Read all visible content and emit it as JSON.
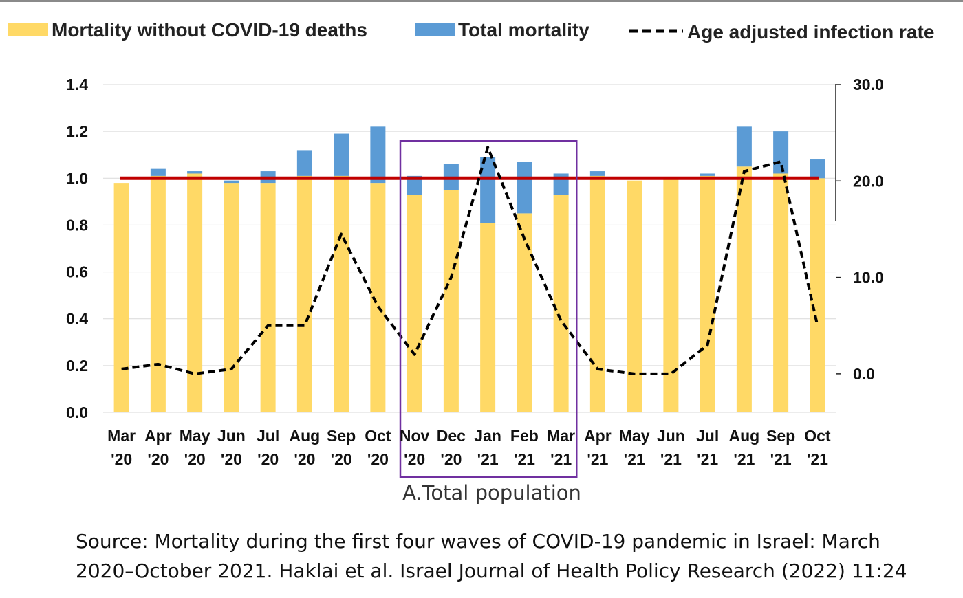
{
  "chart_data": {
    "type": "bar",
    "legend": [
      {
        "label": "Mortality without COVID-19 deaths",
        "color": "#FFD966",
        "style": "box"
      },
      {
        "label": "Total mortality",
        "color": "#5B9BD5",
        "style": "box"
      },
      {
        "label": "Age adjusted infection rate",
        "color": "#000000",
        "style": "dashed-line"
      }
    ],
    "categories": [
      [
        "Mar",
        "'20"
      ],
      [
        "Apr",
        "'20"
      ],
      [
        "May",
        "'20"
      ],
      [
        "Jun",
        "'20"
      ],
      [
        "Jul",
        "'20"
      ],
      [
        "Aug",
        "'20"
      ],
      [
        "Sep",
        "'20"
      ],
      [
        "Oct",
        "'20"
      ],
      [
        "Nov",
        "'20"
      ],
      [
        "Dec",
        "'20"
      ],
      [
        "Jan",
        "'21"
      ],
      [
        "Feb",
        "'21"
      ],
      [
        "Mar",
        "'21"
      ],
      [
        "Apr",
        "'21"
      ],
      [
        "May",
        "'21"
      ],
      [
        "Jun",
        "'21"
      ],
      [
        "Jul",
        "'21"
      ],
      [
        "Aug",
        "'21"
      ],
      [
        "Sep",
        "'21"
      ],
      [
        "Oct",
        "'21"
      ]
    ],
    "series": [
      {
        "name": "Mortality without COVID-19 deaths",
        "axis": "left",
        "values": [
          0.98,
          1.01,
          1.02,
          0.98,
          0.98,
          1.01,
          1.01,
          0.98,
          0.93,
          0.95,
          0.81,
          0.85,
          0.93,
          1.01,
          0.99,
          1.0,
          1.01,
          1.05,
          1.02,
          1.0
        ]
      },
      {
        "name": "Total mortality",
        "axis": "left",
        "values": [
          0.98,
          1.04,
          1.03,
          0.99,
          1.03,
          1.12,
          1.19,
          1.22,
          1.01,
          1.06,
          1.09,
          1.07,
          1.02,
          1.03,
          0.99,
          1.0,
          1.02,
          1.22,
          1.2,
          1.08
        ]
      },
      {
        "name": "Age adjusted infection rate",
        "axis": "right",
        "values": [
          0.5,
          1.0,
          0.0,
          0.5,
          5.0,
          5.0,
          14.5,
          7.0,
          2.0,
          10.0,
          23.5,
          14.0,
          5.5,
          0.5,
          0.0,
          0.0,
          3.0,
          21.0,
          22.0,
          5.0
        ]
      }
    ],
    "reference_line": {
      "value": 1.0,
      "color": "#C00000",
      "axis": "left"
    },
    "highlight_box": {
      "from_index": 8,
      "to_index": 12,
      "color": "#7030A0"
    },
    "y_left": {
      "ticks": [
        "0.0",
        "0.2",
        "0.4",
        "0.6",
        "0.8",
        "1.0",
        "1.2",
        "1.4"
      ],
      "ylim": [
        0,
        1.4
      ]
    },
    "y_right": {
      "ticks": [
        "0.0",
        "10.0",
        "20.0",
        "30.0"
      ],
      "ylim": [
        -4,
        30
      ]
    },
    "grid": true,
    "legend_position": "top",
    "xlabel": "A.Total population"
  },
  "source": {
    "line1": "Source: Mortality during the first four waves of COVID-19 pandemic in Israel: March",
    "line2": "2020–October 2021. Haklai et al. Israel Journal of Health Policy Research (2022) 11:24"
  }
}
